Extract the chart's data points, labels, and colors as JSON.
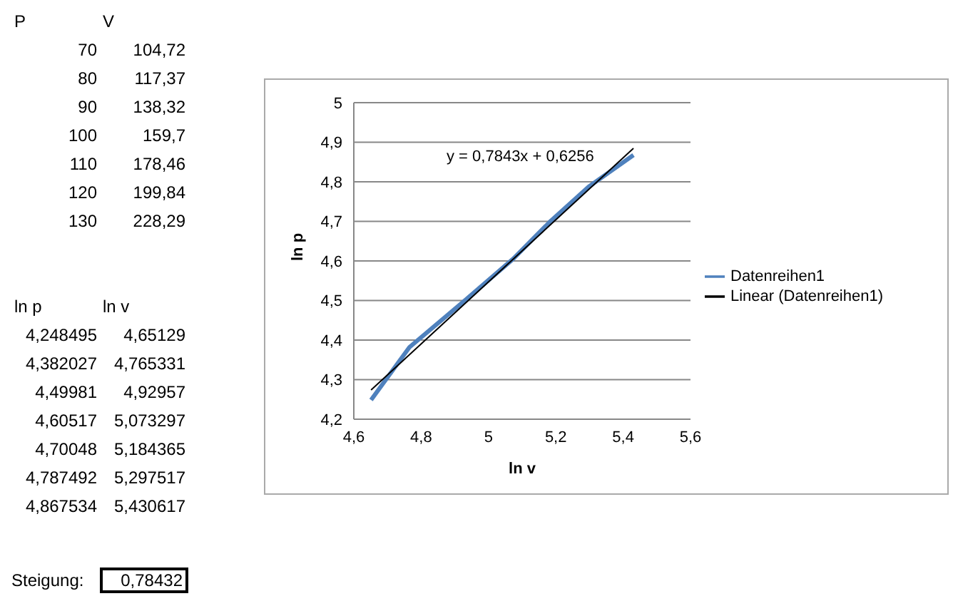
{
  "chart_data": {
    "type": "line",
    "xlabel": "ln v",
    "ylabel": "ln p",
    "x": [
      4.65129,
      4.765331,
      4.92957,
      5.073297,
      5.184365,
      5.297517,
      5.430617
    ],
    "series": [
      {
        "name": "Datenreihen1",
        "color": "#4f81bd",
        "values": [
          4.248495,
          4.382027,
          4.49981,
          4.60517,
          4.70048,
          4.787492,
          4.867534
        ]
      },
      {
        "name": "Linear (Datenreihen1)",
        "color": "#000000",
        "type": "line",
        "x": [
          4.65129,
          5.430617
        ],
        "values": [
          4.2737,
          4.8848
        ]
      }
    ],
    "xlim": [
      4.6,
      5.6
    ],
    "xticks": [
      {
        "value": 4.6,
        "label": "4,6"
      },
      {
        "value": 4.8,
        "label": "4,8"
      },
      {
        "value": 5,
        "label": "5"
      },
      {
        "value": 5.2,
        "label": "5,2"
      },
      {
        "value": 5.4,
        "label": "5,4"
      },
      {
        "value": 5.6,
        "label": "5,6"
      }
    ],
    "ylim": [
      4.2,
      5
    ],
    "yticks": [
      {
        "value": 4.2,
        "label": "4,2"
      },
      {
        "value": 4.3,
        "label": "4,3"
      },
      {
        "value": 4.4,
        "label": "4,4"
      },
      {
        "value": 4.5,
        "label": "4,5"
      },
      {
        "value": 4.6,
        "label": "4,6"
      },
      {
        "value": 4.7,
        "label": "4,7"
      },
      {
        "value": 4.8,
        "label": "4,8"
      },
      {
        "value": 4.9,
        "label": "4,9"
      },
      {
        "value": 5,
        "label": "5"
      }
    ],
    "grid": "y",
    "legend": "right",
    "marker": "none",
    "annotations": [
      "P",
      "V",
      "70",
      "104,72",
      "80",
      "117,37",
      "90",
      "138,32",
      "100",
      "159,7",
      "110",
      "178,46",
      "120",
      "199,84",
      "130",
      "228,29",
      "ln p",
      "ln v",
      "4,248495",
      "4,65129",
      "4,382027",
      "4,765331",
      "4,49981",
      "4,92957",
      "4,60517",
      "5,073297",
      "4,70048",
      "5,184365",
      "4,787492",
      "5,297517",
      "4,867534",
      "5,430617",
      "Steigung:",
      "0,78432",
      "y = 0,7843x + 0,6256"
    ]
  }
}
